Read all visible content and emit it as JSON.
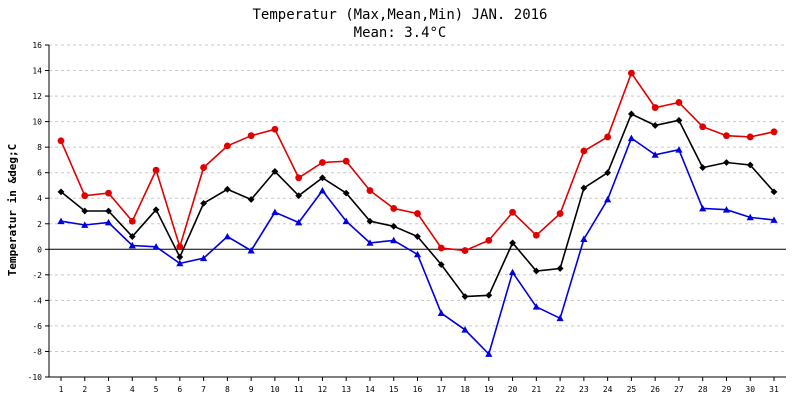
{
  "chart_data": {
    "type": "line",
    "title": "Temperatur (Max,Mean,Min) JAN. 2016",
    "subtitle": "Mean: 3.4°C",
    "xlabel": "",
    "ylabel": "Temperatur in &deg;C",
    "categories": [
      "1",
      "2",
      "3",
      "4",
      "5",
      "6",
      "7",
      "8",
      "9",
      "10",
      "11",
      "12",
      "13",
      "14",
      "15",
      "16",
      "17",
      "18",
      "19",
      "20",
      "21",
      "22",
      "23",
      "24",
      "25",
      "26",
      "27",
      "28",
      "29",
      "30",
      "31"
    ],
    "yticks": [
      "16",
      "14",
      "12",
      "10",
      "8",
      "6",
      "4",
      "2",
      "0",
      "-2",
      "-4",
      "-6",
      "-8",
      "-10"
    ],
    "ylim": [
      -10,
      16
    ],
    "grid": true,
    "series": [
      {
        "key": "max",
        "color": "#e00000",
        "marker": "circle",
        "values": [
          8.5,
          4.2,
          4.4,
          2.2,
          6.2,
          0.2,
          6.4,
          8.1,
          8.9,
          9.4,
          5.6,
          6.8,
          6.9,
          4.6,
          3.2,
          2.8,
          0.1,
          -0.1,
          0.7,
          2.9,
          1.1,
          2.8,
          7.7,
          8.8,
          13.8,
          11.1,
          11.5,
          9.6,
          8.9,
          8.8,
          9.2
        ]
      },
      {
        "key": "mean",
        "color": "#000000",
        "marker": "diamond",
        "values": [
          4.5,
          3.0,
          3.0,
          1.0,
          3.1,
          -0.6,
          3.6,
          4.7,
          3.9,
          6.1,
          4.2,
          5.6,
          4.4,
          2.2,
          1.8,
          1.0,
          -1.2,
          -3.7,
          -3.6,
          0.5,
          -1.7,
          -1.5,
          4.8,
          6.0,
          10.6,
          9.7,
          10.1,
          6.4,
          6.8,
          6.6,
          4.5
        ]
      },
      {
        "key": "min",
        "color": "#0000e0",
        "marker": "triangle",
        "values": [
          2.2,
          1.9,
          2.1,
          0.3,
          0.2,
          -1.1,
          -0.7,
          1.0,
          -0.1,
          2.9,
          2.1,
          4.6,
          2.2,
          0.5,
          0.7,
          -0.4,
          -5.0,
          -6.3,
          -8.2,
          -1.8,
          -4.5,
          -5.4,
          0.8,
          3.9,
          8.7,
          7.4,
          7.8,
          3.2,
          3.1,
          2.5,
          2.3
        ]
      }
    ]
  }
}
